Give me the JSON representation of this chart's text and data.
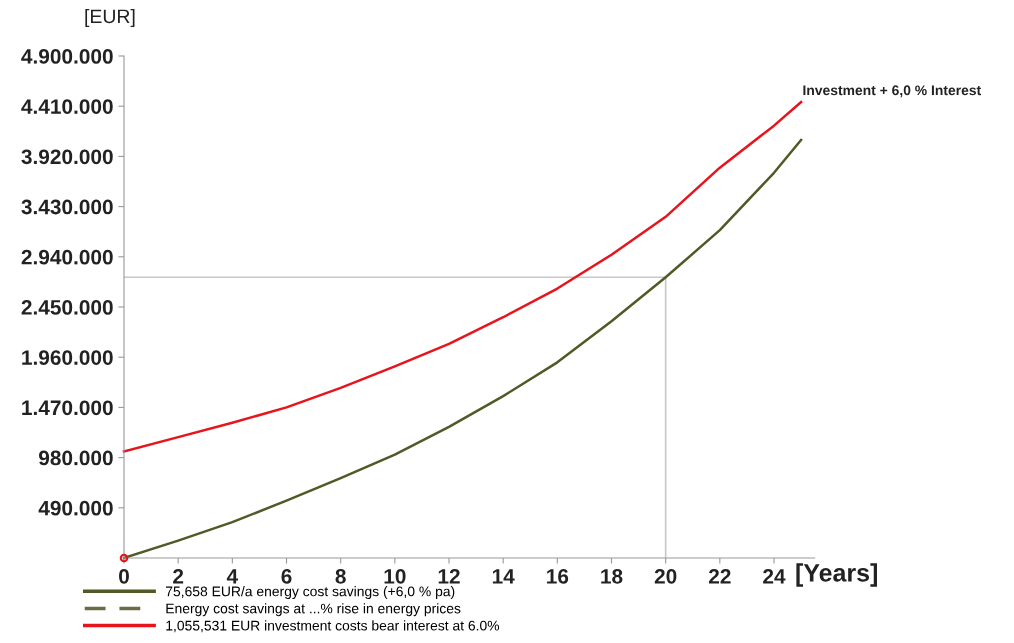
{
  "chart_data": {
    "type": "line",
    "ylabel": "[EUR]",
    "xlabel": "[Years]",
    "x": [
      0,
      2,
      4,
      6,
      8,
      10,
      12,
      14,
      16,
      18,
      20,
      22,
      24,
      25
    ],
    "series": [
      {
        "name": "75,658 EUR/a energy cost savings (+6,0 % pa)",
        "color": "#4f5a26",
        "values": [
          0,
          170000,
          350000,
          560000,
          780000,
          1010000,
          1280000,
          1580000,
          1910000,
          2310000,
          2740000,
          3200000,
          3760000,
          4080000
        ]
      },
      {
        "name": "Energy cost savings at ...% rise in energy prices",
        "color": "#6b6b4a",
        "line_style": "dashed",
        "values": [
          null,
          null,
          null,
          null,
          null,
          null,
          null,
          null,
          null,
          null,
          null,
          null,
          null,
          null
        ]
      },
      {
        "name": "1,055,531 EUR investment costs bear interest at 6.0%",
        "color": "#e8141c",
        "values": [
          1040000,
          1180000,
          1320000,
          1470000,
          1660000,
          1870000,
          2090000,
          2350000,
          2630000,
          2960000,
          3330000,
          3810000,
          4220000,
          4450000
        ]
      },
      {
        "type": "scatter",
        "color": "#e8141c",
        "marker": "circle",
        "x": [
          0
        ],
        "values": [
          0
        ]
      }
    ],
    "xlim": [
      0,
      25.5
    ],
    "xticks": [
      0,
      2,
      4,
      6,
      8,
      10,
      12,
      14,
      16,
      18,
      20,
      22,
      24
    ],
    "ylim": [
      0,
      4900000
    ],
    "yticks": [
      {
        "value": 490000,
        "label": "490.000"
      },
      {
        "value": 980000,
        "label": "980.000"
      },
      {
        "value": 1470000,
        "label": "1.470.000"
      },
      {
        "value": 1960000,
        "label": "1.960.000"
      },
      {
        "value": 2450000,
        "label": "2.450.000"
      },
      {
        "value": 2940000,
        "label": "2.940.000"
      },
      {
        "value": 3430000,
        "label": "3.430.000"
      },
      {
        "value": 3920000,
        "label": "3.920.000"
      },
      {
        "value": 4410000,
        "label": "4.410.000"
      },
      {
        "value": 4900000,
        "label": "4.900.000"
      }
    ],
    "ref_lines": [
      {
        "axis": "x",
        "value": 20,
        "color": "#c8c8c8"
      },
      {
        "axis": "y",
        "value": 2740000,
        "color": "#c8c8c8"
      }
    ],
    "annotations": [
      {
        "text": "Investment + 6,0 % Interest",
        "x": 25,
        "y": 4450000
      }
    ],
    "grid": false,
    "legend": "bottom left"
  }
}
